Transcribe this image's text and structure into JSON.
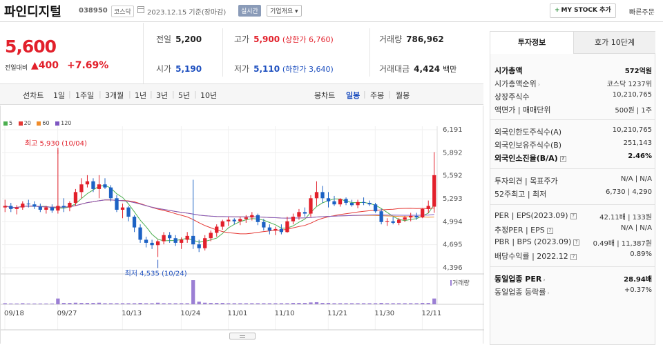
{
  "header": {
    "name": "파인디지털",
    "code": "038950",
    "market_badge": "코스닥",
    "date": "2023.12.15 기준(장마감)",
    "realtime": "실시간",
    "company_info": "기업개요 ▾",
    "mystock_button": "MY STOCK 추가",
    "quick_order": "빠른주문"
  },
  "price": {
    "current": "5,600",
    "change_label": "전일대비",
    "change": "▲400",
    "change_pct": "+7.69%"
  },
  "stats": {
    "prev_close_label": "전일",
    "prev_close": "5,200",
    "high_label": "고가",
    "high": "5,900",
    "high_sub": "(상한가 6,760)",
    "volume_label": "거래량",
    "volume": "786,962",
    "open_label": "시가",
    "open": "5,190",
    "low_label": "저가",
    "low": "5,110",
    "low_sub": "(하한가 3,640)",
    "amount_label": "거래대금",
    "amount": "4,424",
    "amount_unit": "백만"
  },
  "period_bar": {
    "line_label": "선차트",
    "line_periods": [
      "1일",
      "1주일",
      "3개월",
      "1년",
      "3년",
      "5년",
      "10년"
    ],
    "candle_label": "봉차트",
    "candle_periods": [
      "일봉",
      "주봉",
      "월봉"
    ],
    "candle_active": "일봉"
  },
  "chart_data": {
    "type": "candlestick",
    "legend": [
      {
        "name": "5",
        "color": "#4caf50"
      },
      {
        "name": "20",
        "color": "#e53935"
      },
      {
        "name": "60",
        "color": "#f08c2a"
      },
      {
        "name": "120",
        "color": "#7e57c2"
      }
    ],
    "y_ticks": [
      6191,
      5892,
      5592,
      5293,
      4994,
      4695,
      4396
    ],
    "ylim": [
      4396,
      6191
    ],
    "x_labels": [
      "09/18",
      "09/27",
      "10/13",
      "10/24",
      "11/01",
      "11/10",
      "11/21",
      "11/30",
      "12/11"
    ],
    "high_annotation": "최고 5,930 (10/04)",
    "low_annotation": "최저 4,535 (10/24)",
    "volume_label": "거래량",
    "candles": [
      [
        5180,
        5280,
        5120,
        5200
      ],
      [
        5200,
        5240,
        5120,
        5160
      ],
      [
        5160,
        5210,
        5090,
        5180
      ],
      [
        5180,
        5260,
        5150,
        5230
      ],
      [
        5230,
        5280,
        5180,
        5220
      ],
      [
        5220,
        5260,
        5160,
        5190
      ],
      [
        5190,
        5230,
        5120,
        5150
      ],
      [
        5150,
        5200,
        5100,
        5180
      ],
      [
        5180,
        5220,
        5110,
        5140
      ],
      [
        5140,
        5930,
        5100,
        5200
      ],
      [
        5200,
        5300,
        5120,
        5180
      ],
      [
        5180,
        5260,
        5130,
        5240
      ],
      [
        5240,
        5420,
        5200,
        5380
      ],
      [
        5380,
        5560,
        5300,
        5480
      ],
      [
        5480,
        5600,
        5440,
        5520
      ],
      [
        5520,
        5560,
        5380,
        5420
      ],
      [
        5420,
        5600,
        5300,
        5480
      ],
      [
        5480,
        5560,
        5420,
        5440
      ],
      [
        5440,
        5470,
        5260,
        5300
      ],
      [
        5300,
        5340,
        5120,
        5150
      ],
      [
        5150,
        5230,
        5040,
        5180
      ],
      [
        5180,
        5200,
        5000,
        5060
      ],
      [
        5060,
        5080,
        4860,
        4920
      ],
      [
        4920,
        4960,
        4720,
        4760
      ],
      [
        4760,
        4800,
        4660,
        4720
      ],
      [
        4720,
        4760,
        4640,
        4690
      ],
      [
        4690,
        4760,
        4535,
        4740
      ],
      [
        4740,
        4860,
        4700,
        4820
      ],
      [
        4820,
        4860,
        4720,
        4780
      ],
      [
        4780,
        4820,
        4680,
        4720
      ],
      [
        4720,
        4790,
        4640,
        4760
      ],
      [
        4760,
        4860,
        4720,
        4810
      ],
      [
        4810,
        5540,
        4640,
        4700
      ],
      [
        4700,
        4760,
        4600,
        4650
      ],
      [
        4650,
        4820,
        4620,
        4780
      ],
      [
        4780,
        4880,
        4740,
        4850
      ],
      [
        4850,
        4960,
        4800,
        4930
      ],
      [
        4930,
        5020,
        4890,
        5000
      ],
      [
        5000,
        5060,
        4940,
        5020
      ],
      [
        5020,
        5040,
        4960,
        5000
      ],
      [
        5000,
        5060,
        4950,
        5030
      ],
      [
        5030,
        5080,
        4980,
        5050
      ],
      [
        5050,
        5120,
        5010,
        5080
      ],
      [
        5080,
        5100,
        4950,
        4990
      ],
      [
        4990,
        5030,
        4880,
        4920
      ],
      [
        4920,
        4960,
        4830,
        4880
      ],
      [
        4880,
        4930,
        4820,
        4900
      ],
      [
        4900,
        4960,
        4830,
        4860
      ],
      [
        4860,
        5060,
        4850,
        5000
      ],
      [
        5000,
        5100,
        4960,
        5060
      ],
      [
        5060,
        5160,
        5020,
        5120
      ],
      [
        5120,
        5180,
        5060,
        5100
      ],
      [
        5100,
        5340,
        5060,
        5300
      ],
      [
        5300,
        5520,
        5200,
        5380
      ],
      [
        5380,
        5460,
        5240,
        5300
      ],
      [
        5300,
        5380,
        5180,
        5260
      ],
      [
        5260,
        5330,
        5200,
        5220
      ],
      [
        5220,
        5300,
        5190,
        5290
      ],
      [
        5290,
        5310,
        5210,
        5240
      ],
      [
        5240,
        5280,
        5190,
        5210
      ],
      [
        5210,
        5280,
        5170,
        5250
      ],
      [
        5250,
        5310,
        5210,
        5240
      ],
      [
        5240,
        5270,
        5200,
        5220
      ],
      [
        5220,
        5240,
        5110,
        5130
      ],
      [
        5130,
        5160,
        4960,
        4990
      ],
      [
        4990,
        5040,
        4940,
        5000
      ],
      [
        5000,
        5060,
        4960,
        4980
      ],
      [
        4980,
        5040,
        4950,
        5020
      ],
      [
        5020,
        5070,
        4990,
        5050
      ],
      [
        5050,
        5110,
        5000,
        5070
      ],
      [
        5070,
        5110,
        5020,
        5050
      ],
      [
        5050,
        5170,
        5040,
        5160
      ],
      [
        5160,
        5270,
        5110,
        5200
      ],
      [
        5190,
        5900,
        5110,
        5600
      ]
    ],
    "volumes": [
      0.04,
      0.03,
      0.03,
      0.04,
      0.03,
      0.03,
      0.03,
      0.03,
      0.03,
      0.22,
      0.05,
      0.05,
      0.06,
      0.05,
      0.05,
      0.05,
      0.06,
      0.04,
      0.04,
      0.04,
      0.04,
      0.04,
      0.04,
      0.05,
      0.04,
      0.04,
      0.06,
      0.04,
      0.04,
      0.04,
      0.04,
      0.04,
      0.92,
      0.1,
      0.06,
      0.05,
      0.05,
      0.05,
      0.04,
      0.04,
      0.04,
      0.04,
      0.04,
      0.04,
      0.04,
      0.04,
      0.04,
      0.04,
      0.04,
      0.05,
      0.05,
      0.05,
      0.07,
      0.08,
      0.05,
      0.05,
      0.04,
      0.04,
      0.04,
      0.04,
      0.04,
      0.04,
      0.04,
      0.04,
      0.05,
      0.04,
      0.04,
      0.04,
      0.04,
      0.04,
      0.04,
      0.05,
      0.05,
      0.22
    ]
  },
  "right_panel": {
    "tab_active": "투자정보",
    "tab_inactive": "호가 10단계",
    "rows": [
      {
        "label": "시가총액",
        "value": "572억원",
        "bold": true
      },
      {
        "label": "시가총액순위",
        "value": "코스닥 1237위",
        "arrow": true
      },
      {
        "label": "상장주식수",
        "value": "10,210,765"
      },
      {
        "label": "액면가 | 매매단위",
        "value": "500원 | 1주"
      }
    ],
    "rows2": [
      {
        "label": "외국인한도주식수(A)",
        "value": "10,210,765"
      },
      {
        "label": "외국인보유주식수(B)",
        "value": "251,143"
      },
      {
        "label": "외국인소진율(B/A)",
        "value": "2.46%",
        "bold": true
      }
    ],
    "rows3": [
      {
        "label": "투자의견 | 목표주가",
        "value": "N/A | N/A"
      },
      {
        "label": "52주최고 | 최저",
        "value": "6,730 | 4,290"
      }
    ],
    "rows4": [
      {
        "label": "PER | EPS(2023.09)",
        "value": "42.11배 | 133원"
      },
      {
        "label": "추정PER | EPS",
        "value": "N/A | N/A"
      },
      {
        "label": "PBR | BPS (2023.09)",
        "value": "0.49배 | 11,387원"
      },
      {
        "label": "배당수익률 | 2022.12",
        "value": "0.89%"
      }
    ],
    "rows5": [
      {
        "label": "동일업종 PER",
        "value": "28.94배",
        "bold": true
      },
      {
        "label": "동일업종 등락률",
        "value": "+0.37%",
        "red": true
      }
    ]
  }
}
